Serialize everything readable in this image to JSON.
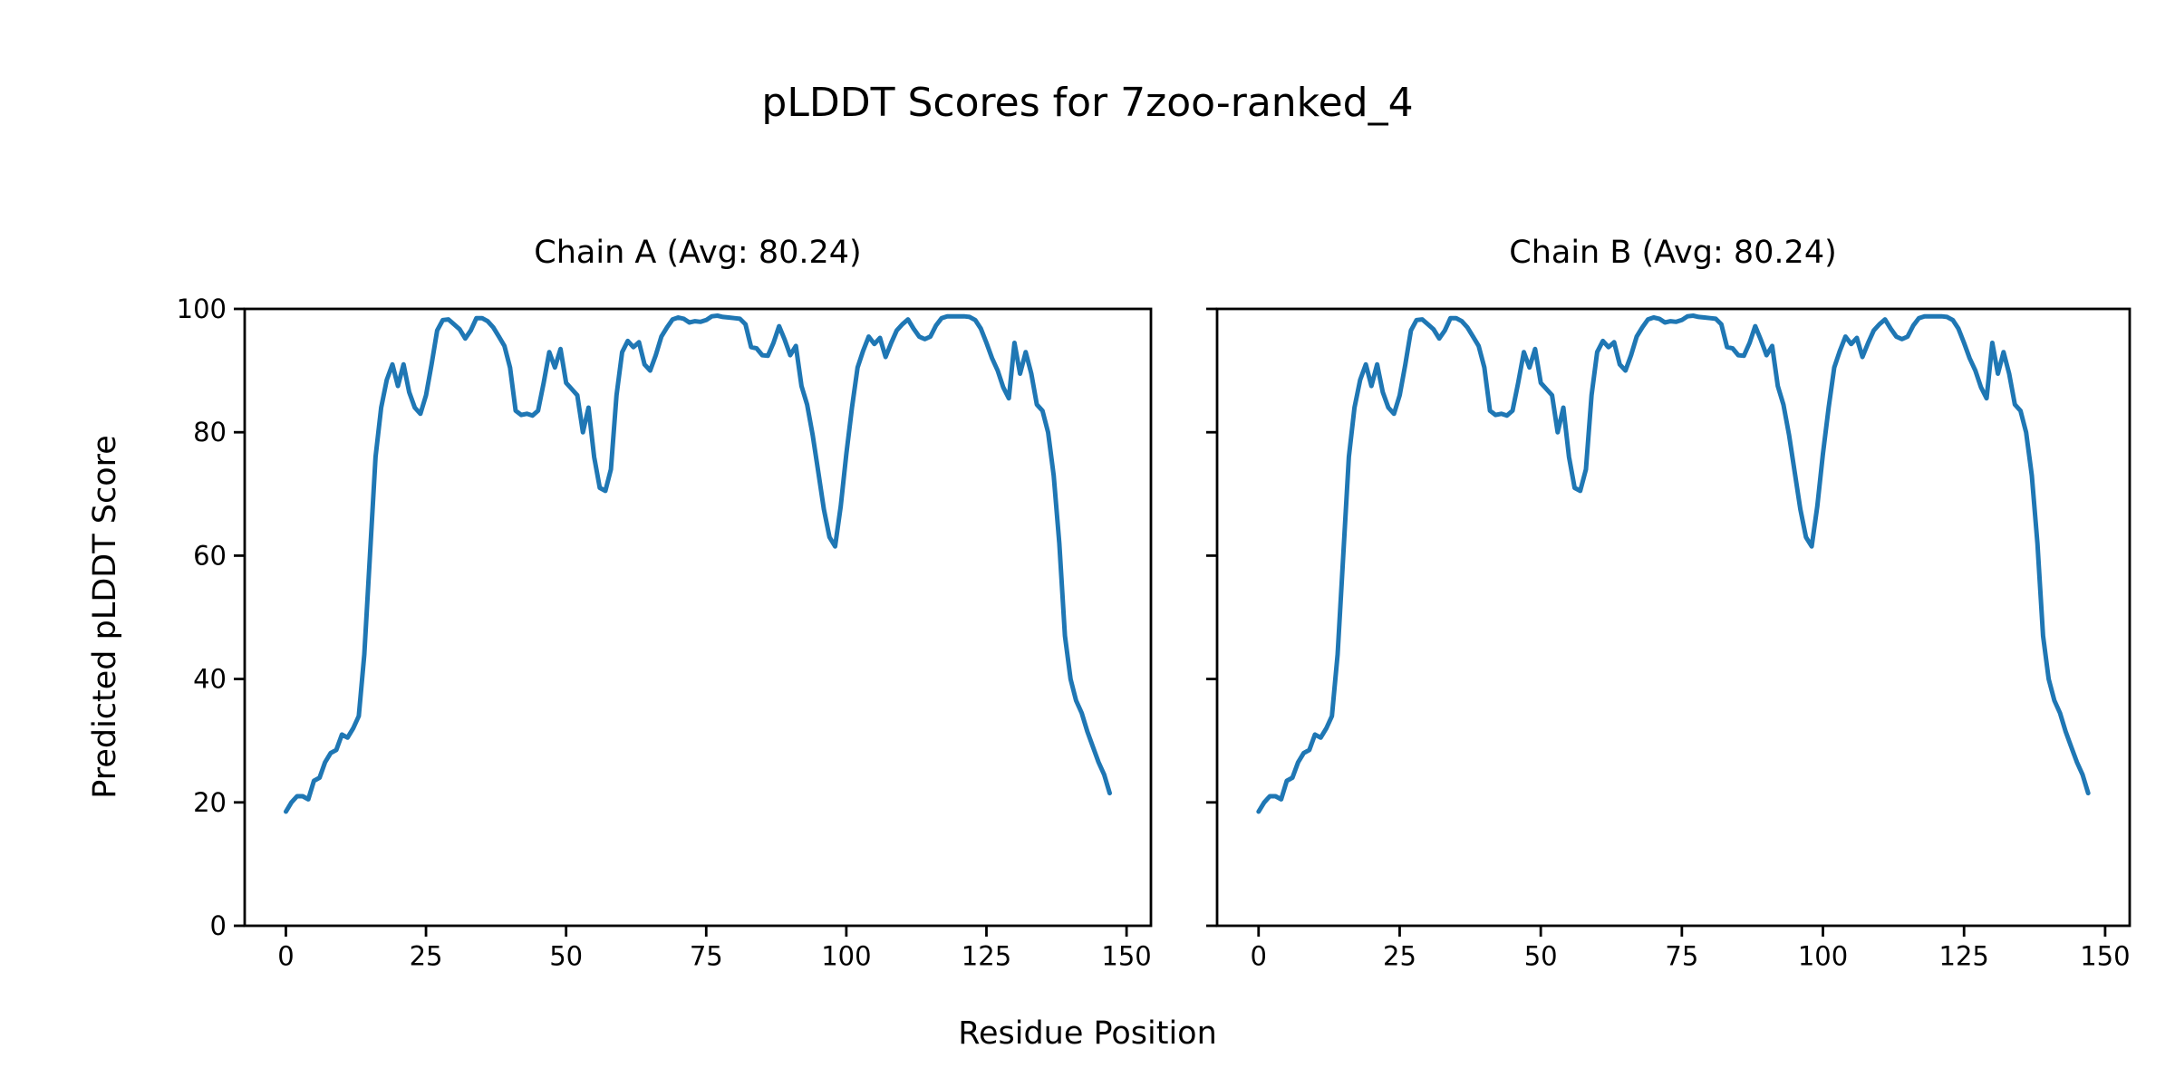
{
  "figure": {
    "title": "pLDDT Scores for 7zoo-ranked_4",
    "xlabel": "Residue Position",
    "ylabel": "Predicted pLDDT Score",
    "background_color": "#ffffff",
    "line_color": "#1f77b4",
    "axis_color": "#000000"
  },
  "chart_data": [
    {
      "type": "line",
      "title": "Chain A (Avg: 80.24)",
      "chain": "A",
      "avg": "80.24",
      "xlabel": "Residue Position",
      "ylabel": "Predicted pLDDT Score",
      "xticks": [
        0,
        25,
        50,
        75,
        100,
        125,
        150
      ],
      "yticks": [
        0,
        20,
        40,
        60,
        80,
        100
      ],
      "show_ytick_labels": true,
      "xlim": [
        -7.35,
        154.35
      ],
      "ylim": [
        0,
        100
      ],
      "x_start": 0,
      "x_step": 1,
      "legend": "none",
      "grid": false,
      "values": [
        18.5,
        20,
        21,
        21,
        20.5,
        23.5,
        24,
        26.5,
        28,
        28.5,
        31,
        30.5,
        32,
        34,
        44,
        60,
        76,
        84,
        88.5,
        91,
        87.5,
        91,
        86.5,
        84,
        83,
        86,
        91,
        96.5,
        98.2,
        98.3,
        97.5,
        96.7,
        95.2,
        96.5,
        98.5,
        98.5,
        98,
        97,
        95.5,
        94,
        90.5,
        83.5,
        82.8,
        83,
        82.7,
        83.5,
        88,
        93,
        90.5,
        93.5,
        88,
        87,
        86,
        80,
        84,
        76,
        71,
        70.5,
        74,
        86,
        93,
        94.8,
        93.8,
        94.6,
        91,
        90,
        92.5,
        95.5,
        97,
        98.3,
        98.6,
        98.4,
        97.8,
        98,
        97.9,
        98.2,
        98.8,
        98.9,
        98.7,
        98.6,
        98.5,
        98.4,
        97.5,
        93.8,
        93.6,
        92.5,
        92.4,
        94.5,
        97.2,
        95,
        92.5,
        94,
        87.5,
        84.5,
        79.5,
        73.5,
        67.5,
        63,
        61.5,
        68,
        76.5,
        84,
        90.5,
        93.2,
        95.5,
        94.3,
        95.3,
        92.2,
        94.5,
        96.5,
        97.5,
        98.3,
        96.8,
        95.5,
        95.1,
        95.5,
        97.3,
        98.5,
        98.8,
        98.8,
        98.8,
        98.8,
        98.7,
        98.2,
        96.8,
        94.5,
        92,
        90,
        87.3,
        85.5,
        94.5,
        89.5,
        93,
        89.5,
        84.5,
        83.5,
        80,
        73,
        62,
        47,
        40,
        36.5,
        34.5,
        31.5,
        29,
        26.5,
        24.5,
        21.5
      ]
    },
    {
      "type": "line",
      "title": "Chain B (Avg: 80.24)",
      "chain": "B",
      "avg": "80.24",
      "xlabel": "Residue Position",
      "ylabel": "Predicted pLDDT Score",
      "xticks": [
        0,
        25,
        50,
        75,
        100,
        125,
        150
      ],
      "yticks": [
        0,
        20,
        40,
        60,
        80,
        100
      ],
      "show_ytick_labels": false,
      "xlim": [
        -7.35,
        154.35
      ],
      "ylim": [
        0,
        100
      ],
      "x_start": 0,
      "x_step": 1,
      "legend": "none",
      "grid": false,
      "values": [
        18.5,
        20,
        21,
        21,
        20.5,
        23.5,
        24,
        26.5,
        28,
        28.5,
        31,
        30.5,
        32,
        34,
        44,
        60,
        76,
        84,
        88.5,
        91,
        87.5,
        91,
        86.5,
        84,
        83,
        86,
        91,
        96.5,
        98.2,
        98.3,
        97.5,
        96.7,
        95.2,
        96.5,
        98.5,
        98.5,
        98,
        97,
        95.5,
        94,
        90.5,
        83.5,
        82.8,
        83,
        82.7,
        83.5,
        88,
        93,
        90.5,
        93.5,
        88,
        87,
        86,
        80,
        84,
        76,
        71,
        70.5,
        74,
        86,
        93,
        94.8,
        93.8,
        94.6,
        91,
        90,
        92.5,
        95.5,
        97,
        98.3,
        98.6,
        98.4,
        97.8,
        98,
        97.9,
        98.2,
        98.8,
        98.9,
        98.7,
        98.6,
        98.5,
        98.4,
        97.5,
        93.8,
        93.6,
        92.5,
        92.4,
        94.5,
        97.2,
        95,
        92.5,
        94,
        87.5,
        84.5,
        79.5,
        73.5,
        67.5,
        63,
        61.5,
        68,
        76.5,
        84,
        90.5,
        93.2,
        95.5,
        94.3,
        95.3,
        92.2,
        94.5,
        96.5,
        97.5,
        98.3,
        96.8,
        95.5,
        95.1,
        95.5,
        97.3,
        98.5,
        98.8,
        98.8,
        98.8,
        98.8,
        98.7,
        98.2,
        96.8,
        94.5,
        92,
        90,
        87.3,
        85.5,
        94.5,
        89.5,
        93,
        89.5,
        84.5,
        83.5,
        80,
        73,
        62,
        47,
        40,
        36.5,
        34.5,
        31.5,
        29,
        26.5,
        24.5,
        21.5
      ]
    }
  ]
}
